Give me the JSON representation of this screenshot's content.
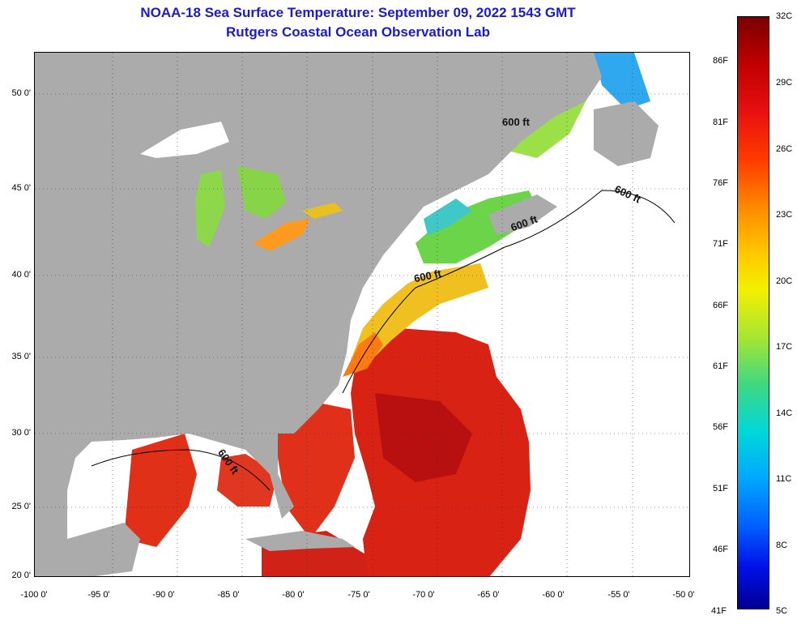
{
  "title": {
    "line1": "NOAA-18 Sea Surface Temperature:  September 09, 2022 1543 GMT",
    "line2": "Rutgers Coastal Ocean Observation Lab"
  },
  "map": {
    "land_color": "#ababab",
    "nodata_color": "#ffffff",
    "lat_ticks": [
      "50 0'",
      "45 0'",
      "40 0'",
      "35 0'",
      "30 0'",
      "25 0'",
      "20 0'"
    ],
    "lon_ticks": [
      "-100 0'",
      "-95 0'",
      "-90 0'",
      "-85 0'",
      "-80 0'",
      "-75 0'",
      "-70 0'",
      "-65 0'",
      "-60 0'",
      "-55 0'",
      "-50 0'"
    ],
    "contour_labels": [
      "600 ft",
      "600 ft",
      "600 ft",
      "600 ft",
      "600 ft"
    ],
    "sst_colors": {
      "warm": "#e02010",
      "hot": "#c01010",
      "orange": "#ff8c10",
      "yellow": "#e8e020",
      "green": "#80d840",
      "cyan": "#40d0c8",
      "blue": "#30a8f0"
    }
  },
  "colorbar": {
    "celsius": [
      "32C",
      "29C",
      "26C",
      "23C",
      "20C",
      "17C",
      "14C",
      "11C",
      "8C",
      "5C"
    ],
    "fahrenheit": [
      "86F",
      "81F",
      "76F",
      "71F",
      "66F",
      "61F",
      "56F",
      "51F",
      "46F",
      "41F"
    ]
  }
}
